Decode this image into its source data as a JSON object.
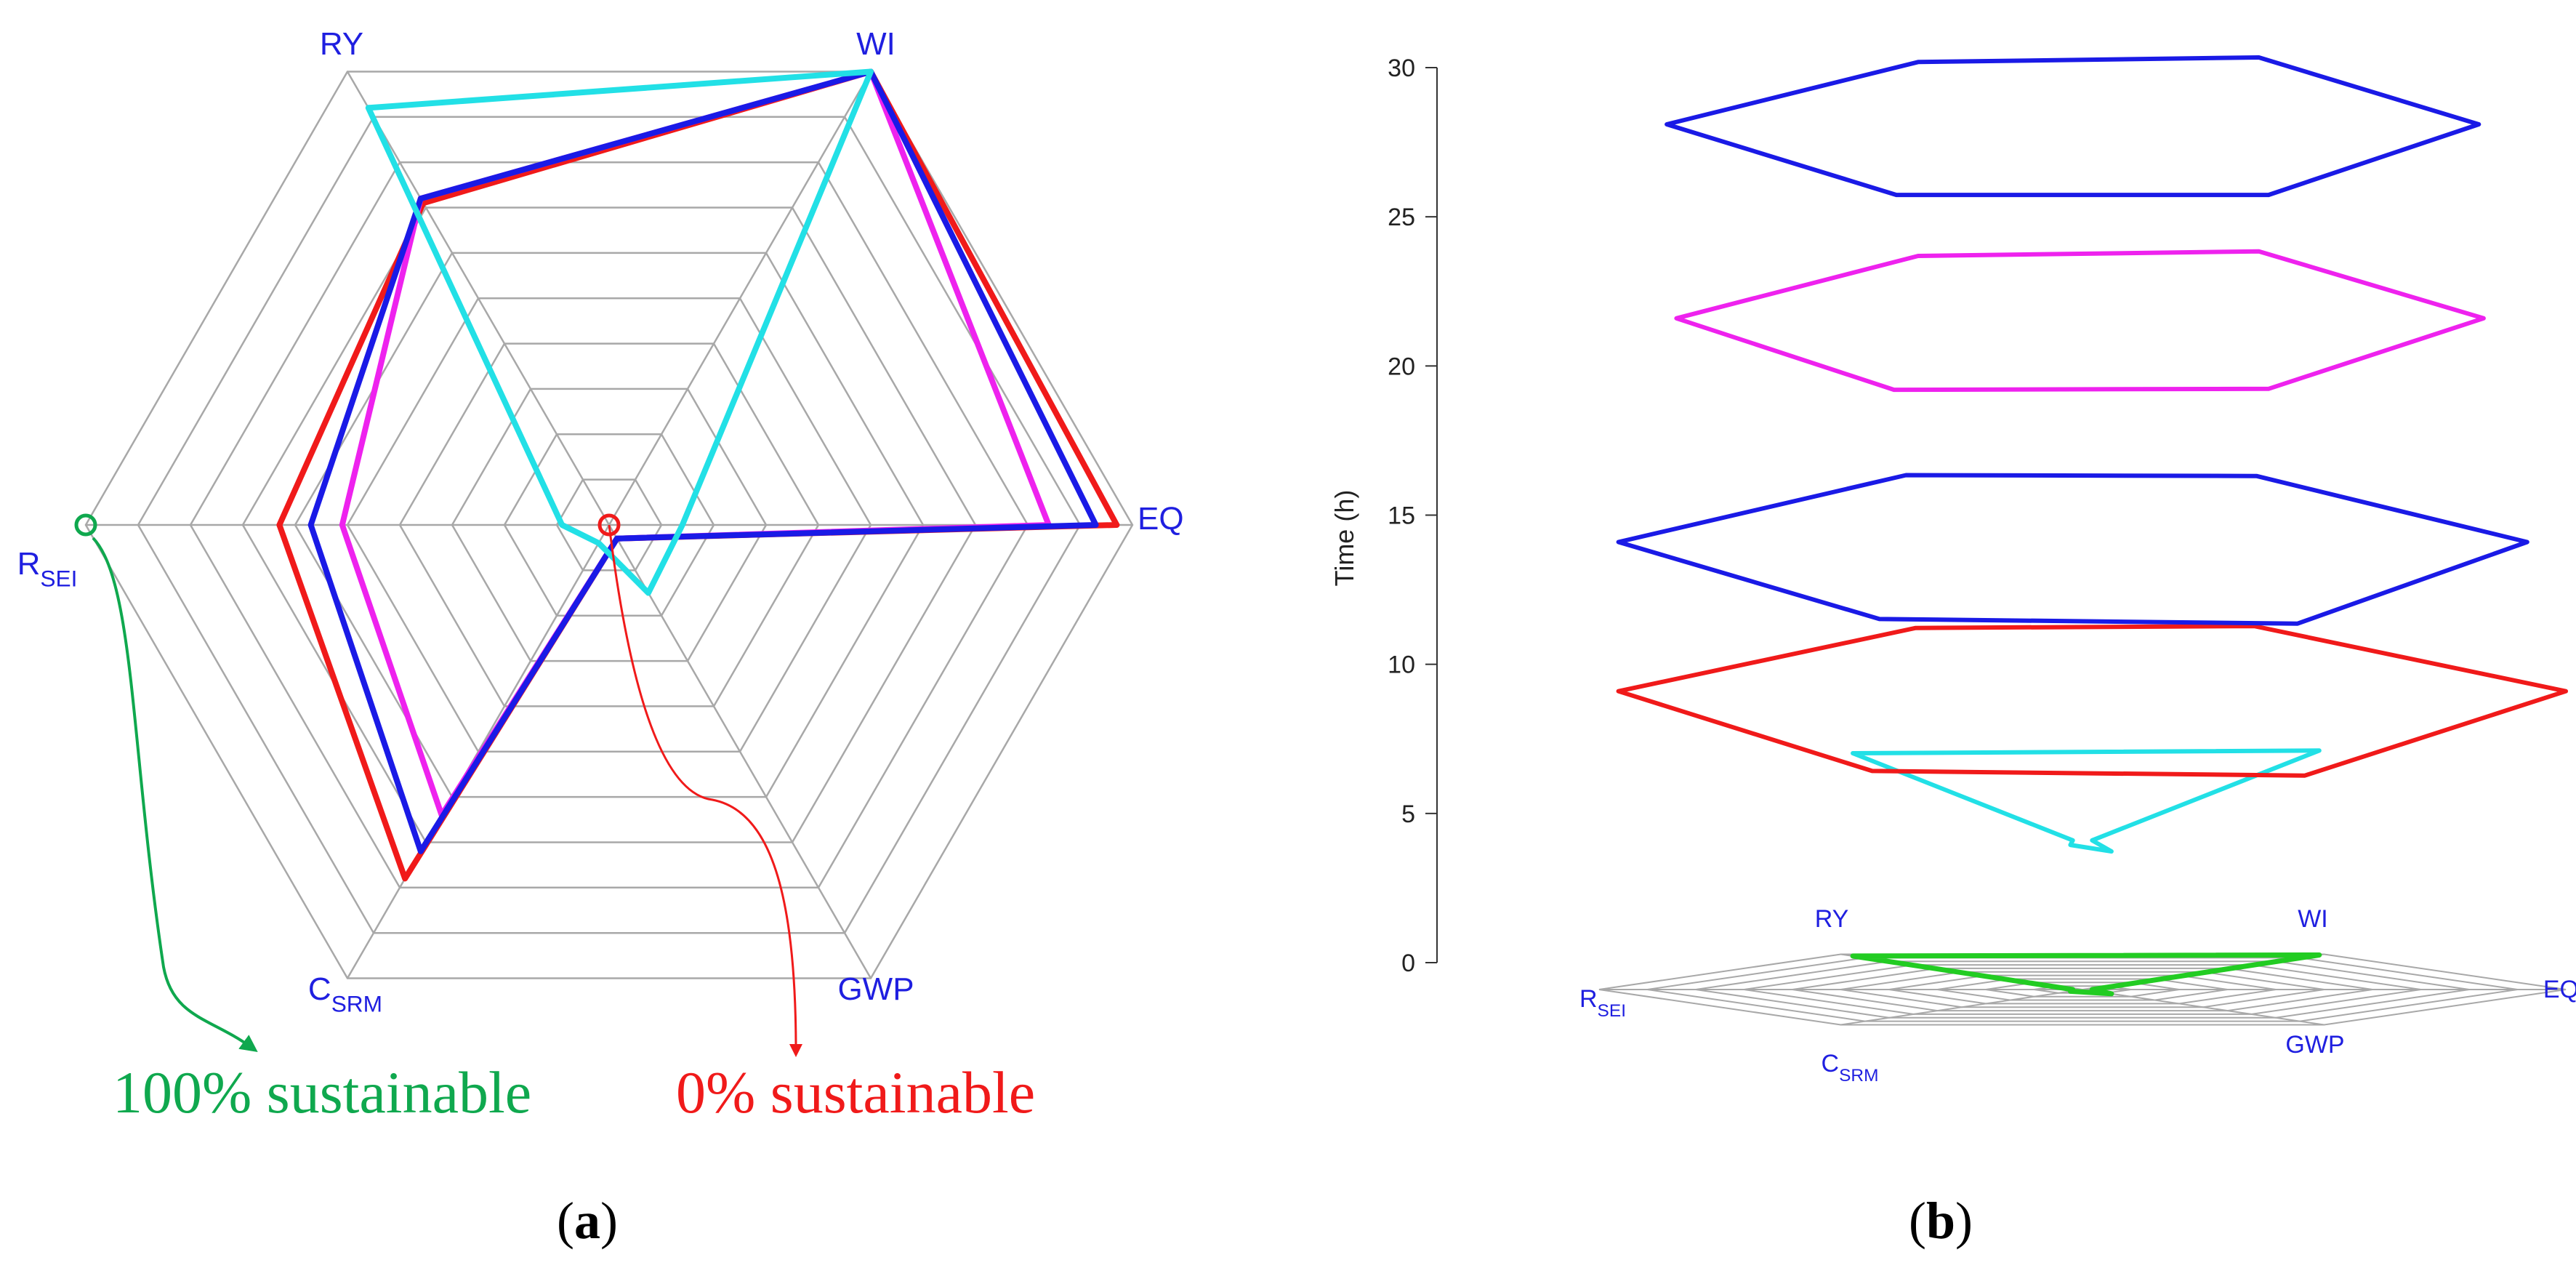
{
  "colors": {
    "grid": "#a8a8a8",
    "label": "#1f1fe0",
    "green": "#0fa84e",
    "red": "#f01a1a",
    "s_blue": "#1a1ae6",
    "s_red": "#f01a1a",
    "s_magenta": "#ee22ee",
    "s_cyan": "#22e0e6",
    "s_green": "#22cc22",
    "axis": "#333333"
  },
  "chart_data": [
    {
      "id": "a",
      "type": "radar",
      "panel_label": "(a)",
      "panel_letter": "a",
      "axes": [
        {
          "main": "WI",
          "sub": ""
        },
        {
          "main": "EQ",
          "sub": ""
        },
        {
          "main": "GWP",
          "sub": ""
        },
        {
          "main": "C",
          "sub": "SRM"
        },
        {
          "main": "R",
          "sub": "SEI"
        },
        {
          "main": "RY",
          "sub": ""
        }
      ],
      "range": [
        0,
        1
      ],
      "rings": 10,
      "series": [
        {
          "name": "red",
          "color_key": "s_red",
          "values": [
            1.0,
            0.97,
            0.03,
            0.78,
            0.63,
            0.71
          ]
        },
        {
          "name": "magenta",
          "color_key": "s_magenta",
          "values": [
            1.0,
            0.84,
            0.03,
            0.64,
            0.51,
            0.72
          ]
        },
        {
          "name": "blue",
          "color_key": "s_blue",
          "values": [
            1.0,
            0.93,
            0.03,
            0.72,
            0.57,
            0.72
          ]
        },
        {
          "name": "cyan",
          "color_key": "s_cyan",
          "values": [
            1.0,
            0.14,
            0.15,
            0.04,
            0.09,
            0.92
          ]
        }
      ],
      "annotations": [
        {
          "text": "100% sustainable",
          "color_key": "green",
          "marker_axis": 4,
          "marker_value": 1.0
        },
        {
          "text": "0% sustainable",
          "color_key": "red",
          "marker_axis": 0,
          "marker_value": 0.0
        }
      ]
    },
    {
      "id": "b",
      "type": "stacked-radar-3d",
      "panel_label": "(b)",
      "panel_letter": "b",
      "ylabel": "Time (h)",
      "yticks": [
        0,
        5,
        10,
        15,
        20,
        25,
        30
      ],
      "ylim": [
        0,
        30
      ],
      "base_axes": [
        {
          "main": "RY",
          "sub": ""
        },
        {
          "main": "WI",
          "sub": ""
        },
        {
          "main": "EQ",
          "sub": ""
        },
        {
          "main": "GWP",
          "sub": ""
        },
        {
          "main": "C",
          "sub": "SRM"
        },
        {
          "main": "R",
          "sub": "SEI"
        }
      ],
      "series": [
        {
          "time": 0,
          "color_key": "s_green",
          "values": [
            0.95,
            0.98,
            0.02,
            0.12,
            0.05,
            0.02
          ]
        },
        {
          "time": 5,
          "color_key": "s_cyan",
          "values": [
            0.95,
            0.98,
            0.02,
            0.12,
            0.05,
            0.02
          ]
        },
        {
          "time": 10,
          "color_key": "s_red",
          "values": [
            0.69,
            0.71,
            1.0,
            0.92,
            0.87,
            0.96
          ]
        },
        {
          "time": 15,
          "color_key": "s_blue",
          "values": [
            0.73,
            0.72,
            0.92,
            0.89,
            0.84,
            0.96
          ]
        },
        {
          "time": 22.5,
          "color_key": "s_magenta",
          "values": [
            0.68,
            0.73,
            0.83,
            0.77,
            0.78,
            0.84
          ]
        },
        {
          "time": 29,
          "color_key": "s_blue",
          "values": [
            0.68,
            0.73,
            0.82,
            0.77,
            0.77,
            0.86
          ]
        }
      ]
    }
  ]
}
